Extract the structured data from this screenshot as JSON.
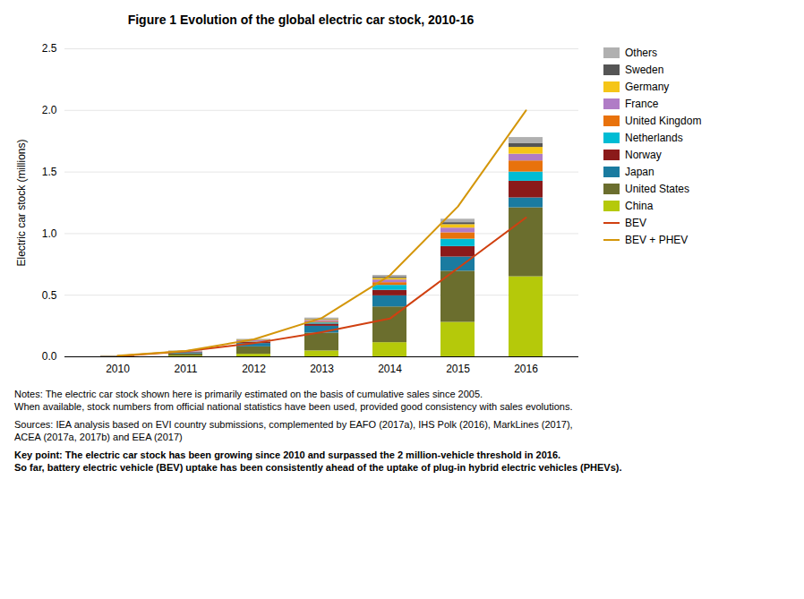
{
  "chart_data": {
    "type": "bar",
    "stacked": true,
    "title": "Figure 1 Evolution of the global electric car stock, 2010-16",
    "y_label": "Electric car stock (millions)",
    "categories": [
      "2010",
      "2011",
      "2012",
      "2013",
      "2014",
      "2015",
      "2016"
    ],
    "series": [
      {
        "name": "China",
        "type": "bar",
        "color": "#b5c90a",
        "values": [
          0.001,
          0.006,
          0.021,
          0.048,
          0.115,
          0.28,
          0.65
        ]
      },
      {
        "name": "United States",
        "type": "bar",
        "color": "#6b6e2e",
        "values": [
          0.003,
          0.018,
          0.06,
          0.145,
          0.29,
          0.415,
          0.56
        ]
      },
      {
        "name": "Japan",
        "type": "bar",
        "color": "#1a7ba0",
        "values": [
          0.001,
          0.009,
          0.027,
          0.055,
          0.09,
          0.115,
          0.08
        ]
      },
      {
        "name": "Norway",
        "type": "bar",
        "color": "#8b1a1a",
        "values": [
          0.001,
          0.004,
          0.008,
          0.018,
          0.045,
          0.085,
          0.135
        ]
      },
      {
        "name": "Netherlands",
        "type": "bar",
        "color": "#00bcd4",
        "values": [
          0.0,
          0.001,
          0.004,
          0.009,
          0.04,
          0.06,
          0.075
        ]
      },
      {
        "name": "United Kingdom",
        "type": "bar",
        "color": "#e8720c",
        "values": [
          0.0,
          0.001,
          0.003,
          0.007,
          0.022,
          0.052,
          0.09
        ]
      },
      {
        "name": "France",
        "type": "bar",
        "color": "#b07cc6",
        "values": [
          0.001,
          0.004,
          0.009,
          0.013,
          0.022,
          0.038,
          0.055
        ]
      },
      {
        "name": "Germany",
        "type": "bar",
        "color": "#f5c518",
        "values": [
          0.001,
          0.002,
          0.004,
          0.007,
          0.013,
          0.028,
          0.055
        ]
      },
      {
        "name": "Sweden",
        "type": "bar",
        "color": "#555555",
        "values": [
          0.0,
          0.001,
          0.002,
          0.004,
          0.009,
          0.016,
          0.03
        ]
      },
      {
        "name": "Others",
        "type": "bar",
        "color": "#b0b0b0",
        "values": [
          0.001,
          0.002,
          0.004,
          0.009,
          0.015,
          0.028,
          0.05
        ]
      },
      {
        "name": "BEV",
        "type": "line",
        "color": "#d04010",
        "values": [
          0.005,
          0.045,
          0.11,
          0.2,
          0.31,
          0.72,
          1.13
        ]
      },
      {
        "name": "BEV + PHEV",
        "type": "line",
        "color": "#d4960a",
        "values": [
          0.009,
          0.048,
          0.142,
          0.315,
          0.661,
          1.22,
          2.0
        ]
      }
    ],
    "ylim": [
      0,
      2.5
    ],
    "yticks": [
      {
        "value": 0,
        "label": "0.0"
      },
      0.5,
      {
        "value": 1,
        "label": "1.0"
      },
      1.5,
      {
        "value": 2,
        "label": "2.0"
      },
      2.5
    ],
    "grid": true,
    "legend": "right",
    "notes": [
      "Notes: The electric car stock shown here is primarily estimated on the basis of cumulative sales since 2005.",
      "When available, stock numbers from official national statistics have been used, provided good consistency with sales evolutions."
    ],
    "sources": [
      "Sources: IEA analysis based on EVI country submissions, complemented by EAFO (2017a), IHS Polk (2016), MarkLines (2017),",
      "ACEA (2017a, 2017b) and EEA (2017)"
    ],
    "key_point": [
      "Key point: The electric car stock has been growing since 2010 and surpassed the 2 million-vehicle threshold in 2016.",
      "So far, battery electric vehicle (BEV) uptake has been consistently ahead of the uptake of plug-in hybrid electric vehicles (PHEVs)."
    ]
  }
}
